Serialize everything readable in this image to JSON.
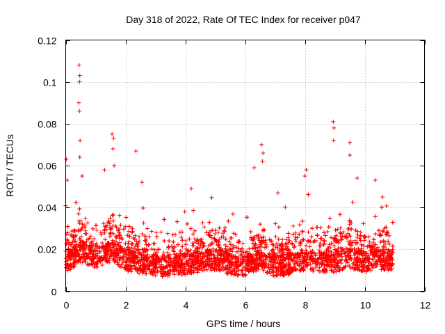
{
  "chart_data": {
    "type": "scatter",
    "title": "Day 318 of 2022, Rate Of TEC Index for receiver p047",
    "xlabel": "GPS time / hours",
    "ylabel": "ROTI / TECUs",
    "xlim": [
      0,
      12
    ],
    "ylim": [
      0,
      0.12
    ],
    "x_ticks": [
      "0",
      "2",
      "4",
      "6",
      "8",
      "10",
      "12"
    ],
    "y_ticks": [
      "0",
      "0.02",
      "0.04",
      "0.06",
      "0.08",
      "0.1",
      "0.12"
    ],
    "grid": true,
    "marker": "+",
    "color": "#ff0000",
    "data_extent_hours": [
      0,
      10.95
    ],
    "notable_peaks": [
      {
        "x": 0.02,
        "y": 0.063
      },
      {
        "x": 0.05,
        "y": 0.053
      },
      {
        "x": 0.45,
        "y": 0.108
      },
      {
        "x": 0.47,
        "y": 0.103
      },
      {
        "x": 0.46,
        "y": 0.1
      },
      {
        "x": 0.44,
        "y": 0.09
      },
      {
        "x": 0.46,
        "y": 0.086
      },
      {
        "x": 0.48,
        "y": 0.072
      },
      {
        "x": 0.47,
        "y": 0.064
      },
      {
        "x": 0.55,
        "y": 0.055
      },
      {
        "x": 1.3,
        "y": 0.058
      },
      {
        "x": 1.55,
        "y": 0.075
      },
      {
        "x": 1.6,
        "y": 0.073
      },
      {
        "x": 1.58,
        "y": 0.068
      },
      {
        "x": 1.62,
        "y": 0.06
      },
      {
        "x": 2.35,
        "y": 0.067
      },
      {
        "x": 2.55,
        "y": 0.052
      },
      {
        "x": 4.2,
        "y": 0.049
      },
      {
        "x": 6.3,
        "y": 0.059
      },
      {
        "x": 6.55,
        "y": 0.07
      },
      {
        "x": 6.6,
        "y": 0.066
      },
      {
        "x": 6.58,
        "y": 0.062
      },
      {
        "x": 7.1,
        "y": 0.047
      },
      {
        "x": 8.05,
        "y": 0.058
      },
      {
        "x": 8.0,
        "y": 0.055
      },
      {
        "x": 8.95,
        "y": 0.081
      },
      {
        "x": 8.97,
        "y": 0.078
      },
      {
        "x": 8.96,
        "y": 0.072
      },
      {
        "x": 9.5,
        "y": 0.071
      },
      {
        "x": 9.5,
        "y": 0.065
      },
      {
        "x": 9.75,
        "y": 0.054
      },
      {
        "x": 10.35,
        "y": 0.053
      },
      {
        "x": 10.6,
        "y": 0.045
      }
    ],
    "baseline_profile": [
      {
        "x": 0.0,
        "y": 0.013
      },
      {
        "x": 0.5,
        "y": 0.019
      },
      {
        "x": 1.0,
        "y": 0.016
      },
      {
        "x": 1.5,
        "y": 0.019
      },
      {
        "x": 2.0,
        "y": 0.015
      },
      {
        "x": 2.5,
        "y": 0.013
      },
      {
        "x": 3.0,
        "y": 0.012
      },
      {
        "x": 3.5,
        "y": 0.012
      },
      {
        "x": 4.0,
        "y": 0.013
      },
      {
        "x": 4.5,
        "y": 0.014
      },
      {
        "x": 5.0,
        "y": 0.015
      },
      {
        "x": 5.5,
        "y": 0.013
      },
      {
        "x": 6.0,
        "y": 0.012
      },
      {
        "x": 6.5,
        "y": 0.015
      },
      {
        "x": 7.0,
        "y": 0.012
      },
      {
        "x": 7.5,
        "y": 0.013
      },
      {
        "x": 8.0,
        "y": 0.015
      },
      {
        "x": 8.5,
        "y": 0.014
      },
      {
        "x": 9.0,
        "y": 0.014
      },
      {
        "x": 9.5,
        "y": 0.016
      },
      {
        "x": 10.0,
        "y": 0.014
      },
      {
        "x": 10.5,
        "y": 0.015
      },
      {
        "x": 10.95,
        "y": 0.015
      }
    ]
  }
}
